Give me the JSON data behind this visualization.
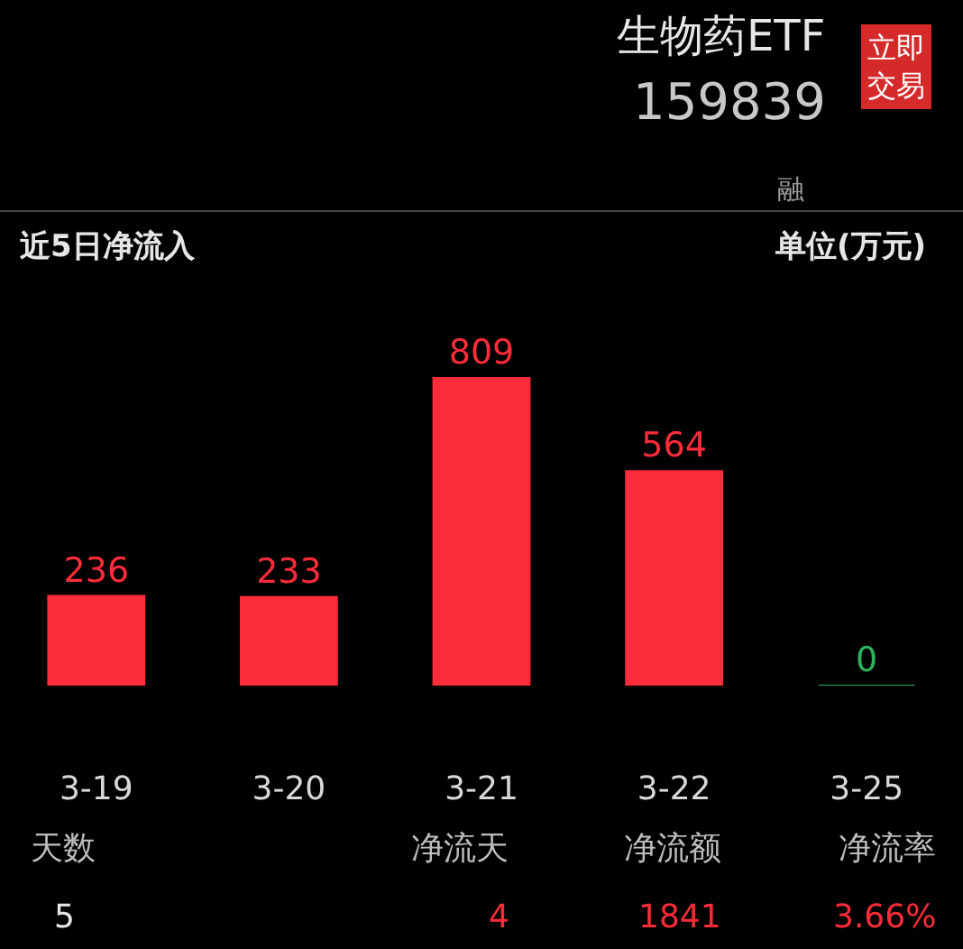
{
  "chart_data": {
    "type": "bar",
    "title": "近5日净流入",
    "subtitle": "单位(万元)",
    "categories": [
      "3-19",
      "3-20",
      "3-21",
      "3-22",
      "3-25"
    ],
    "values": [
      236,
      233,
      809,
      564,
      0
    ],
    "colors": [
      "#fc2c3a",
      "#fc2c3a",
      "#fc2c3a",
      "#fc2c3a",
      "#2bb35a"
    ],
    "data_labels": true,
    "grid": false,
    "legend": false,
    "annotations": [
      "生物药ETF",
      "159839",
      "立即交易",
      "融",
      "天数",
      "5",
      "净流天",
      "4",
      "净流额",
      "1841",
      "净流率",
      "3.66%"
    ]
  }
}
